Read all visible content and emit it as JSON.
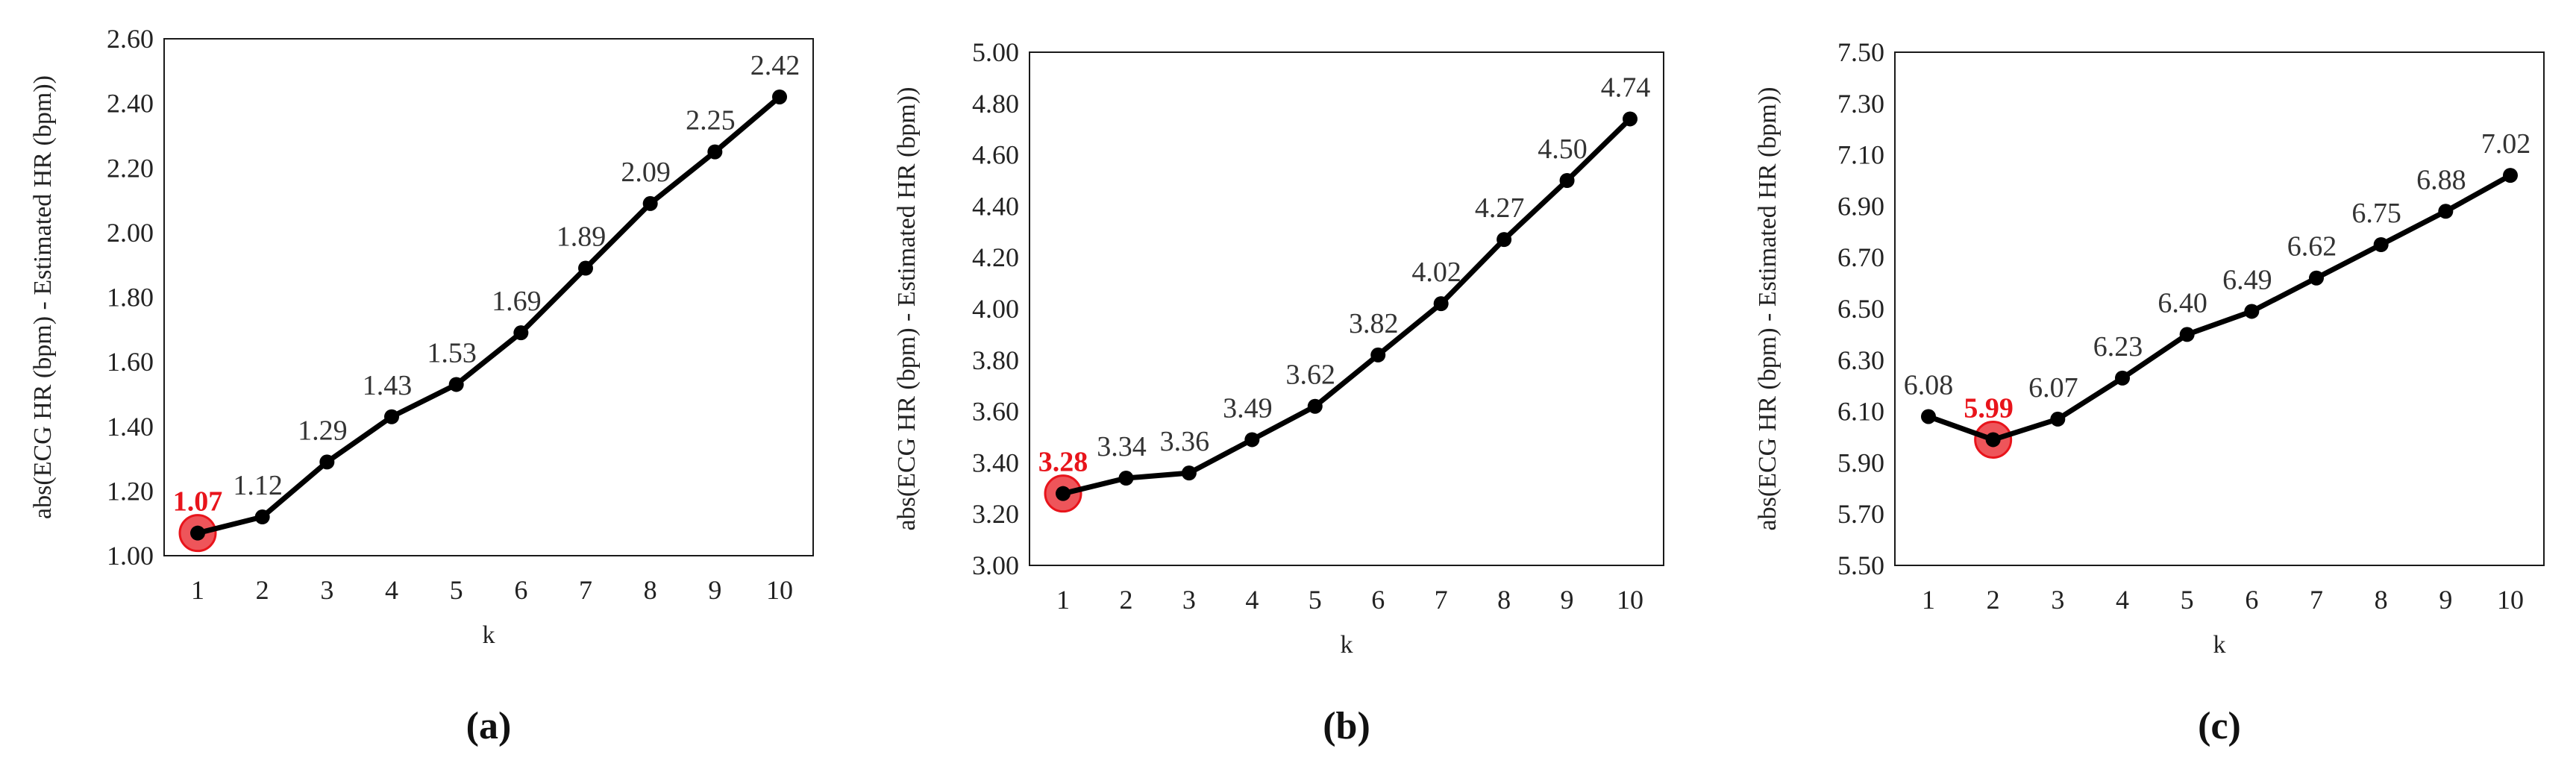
{
  "chart_data": [
    {
      "type": "line",
      "panel_label": "(a)",
      "xlabel": "k",
      "ylabel": "abs(ECG HR (bpm) - Estimated HR (bpm))",
      "categories": [
        "1",
        "2",
        "3",
        "4",
        "5",
        "6",
        "7",
        "8",
        "9",
        "10"
      ],
      "values": [
        1.07,
        1.12,
        1.29,
        1.43,
        1.53,
        1.69,
        1.89,
        2.09,
        2.25,
        2.42
      ],
      "value_labels": [
        "1.07",
        "1.12",
        "1.29",
        "1.43",
        "1.53",
        "1.69",
        "1.89",
        "2.09",
        "2.25",
        "2.42"
      ],
      "yticks": [
        "1.00",
        "1.20",
        "1.40",
        "1.60",
        "1.80",
        "2.00",
        "2.20",
        "2.40",
        "2.60"
      ],
      "ylim": [
        1.0,
        2.6
      ],
      "highlight_index": 0,
      "grid": false,
      "line_color": "#000000",
      "highlight_color": "#e8141b"
    },
    {
      "type": "line",
      "panel_label": "(b)",
      "xlabel": "k",
      "ylabel": "abs(ECG HR (bpm) - Estimated HR (bpm))",
      "categories": [
        "1",
        "2",
        "3",
        "4",
        "5",
        "6",
        "7",
        "8",
        "9",
        "10"
      ],
      "values": [
        3.28,
        3.34,
        3.36,
        3.49,
        3.62,
        3.82,
        4.02,
        4.27,
        4.5,
        4.74
      ],
      "value_labels": [
        "3.28",
        "3.34",
        "3.36",
        "3.49",
        "3.62",
        "3.82",
        "4.02",
        "4.27",
        "4.50",
        "4.74"
      ],
      "yticks": [
        "3.00",
        "3.20",
        "3.40",
        "3.60",
        "3.80",
        "4.00",
        "4.20",
        "4.40",
        "4.60",
        "4.80",
        "5.00"
      ],
      "ylim": [
        3.0,
        5.0
      ],
      "highlight_index": 0,
      "grid": false,
      "line_color": "#000000",
      "highlight_color": "#e8141b"
    },
    {
      "type": "line",
      "panel_label": "(c)",
      "xlabel": "k",
      "ylabel": "abs(ECG HR (bpm) - Estimated HR (bpm))",
      "categories": [
        "1",
        "2",
        "3",
        "4",
        "5",
        "6",
        "7",
        "8",
        "9",
        "10"
      ],
      "values": [
        6.08,
        5.99,
        6.07,
        6.23,
        6.4,
        6.49,
        6.62,
        6.75,
        6.88,
        7.02
      ],
      "value_labels": [
        "6.08",
        "5.99",
        "6.07",
        "6.23",
        "6.40",
        "6.49",
        "6.62",
        "6.75",
        "6.88",
        "7.02"
      ],
      "yticks": [
        "5.50",
        "5.70",
        "5.90",
        "6.10",
        "6.30",
        "6.50",
        "6.70",
        "6.90",
        "7.10",
        "7.30",
        "7.50"
      ],
      "ylim": [
        5.5,
        7.5
      ],
      "highlight_index": 1,
      "grid": false,
      "line_color": "#000000",
      "highlight_color": "#e8141b"
    }
  ]
}
